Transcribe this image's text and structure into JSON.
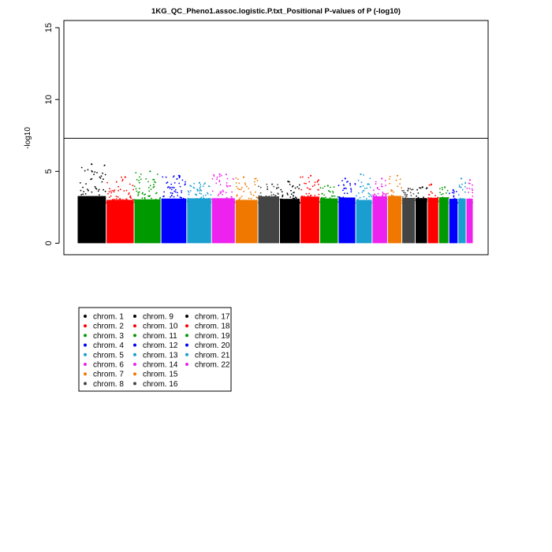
{
  "chart_data": {
    "type": "scatter",
    "title": "1KG_QC_Pheno1.assoc.logistic.P.txt_Positional P-values of P (-log10)",
    "xlabel": "",
    "ylabel": "-log10",
    "ylim": [
      -0.8,
      15.5
    ],
    "yticks": [
      0,
      5,
      10,
      15
    ],
    "grid": false,
    "legend_position": "bottom-left",
    "significance_line": 7.3,
    "chromosomes": [
      {
        "name": "chrom. 1",
        "color": "#000000",
        "peak": 5.5
      },
      {
        "name": "chrom. 2",
        "color": "#ff0000",
        "peak": 4.6
      },
      {
        "name": "chrom. 3",
        "color": "#009900",
        "peak": 5.0
      },
      {
        "name": "chrom. 4",
        "color": "#0000ff",
        "peak": 4.7
      },
      {
        "name": "chrom. 5",
        "color": "#1a9ecf",
        "peak": 4.2
      },
      {
        "name": "chrom. 6",
        "color": "#ee22ee",
        "peak": 4.8
      },
      {
        "name": "chrom. 7",
        "color": "#f07800",
        "peak": 4.6
      },
      {
        "name": "chrom. 8",
        "color": "#444444",
        "peak": 4.1
      },
      {
        "name": "chrom. 9",
        "color": "#000000",
        "peak": 4.3
      },
      {
        "name": "chrom. 10",
        "color": "#ff0000",
        "peak": 4.7
      },
      {
        "name": "chrom. 11",
        "color": "#009900",
        "peak": 4.0
      },
      {
        "name": "chrom. 12",
        "color": "#0000ff",
        "peak": 4.5
      },
      {
        "name": "chrom. 13",
        "color": "#1a9ecf",
        "peak": 4.8
      },
      {
        "name": "chrom. 14",
        "color": "#ee22ee",
        "peak": 4.5
      },
      {
        "name": "chrom. 15",
        "color": "#f07800",
        "peak": 4.7
      },
      {
        "name": "chrom. 16",
        "color": "#444444",
        "peak": 3.8
      },
      {
        "name": "chrom. 17",
        "color": "#000000",
        "peak": 3.9
      },
      {
        "name": "chrom. 18",
        "color": "#ff0000",
        "peak": 4.1
      },
      {
        "name": "chrom. 19",
        "color": "#009900",
        "peak": 3.9
      },
      {
        "name": "chrom. 20",
        "color": "#0000ff",
        "peak": 3.7
      },
      {
        "name": "chrom. 21",
        "color": "#1a9ecf",
        "peak": 4.5
      },
      {
        "name": "chrom. 22",
        "color": "#ee22ee",
        "peak": 4.4
      }
    ]
  }
}
